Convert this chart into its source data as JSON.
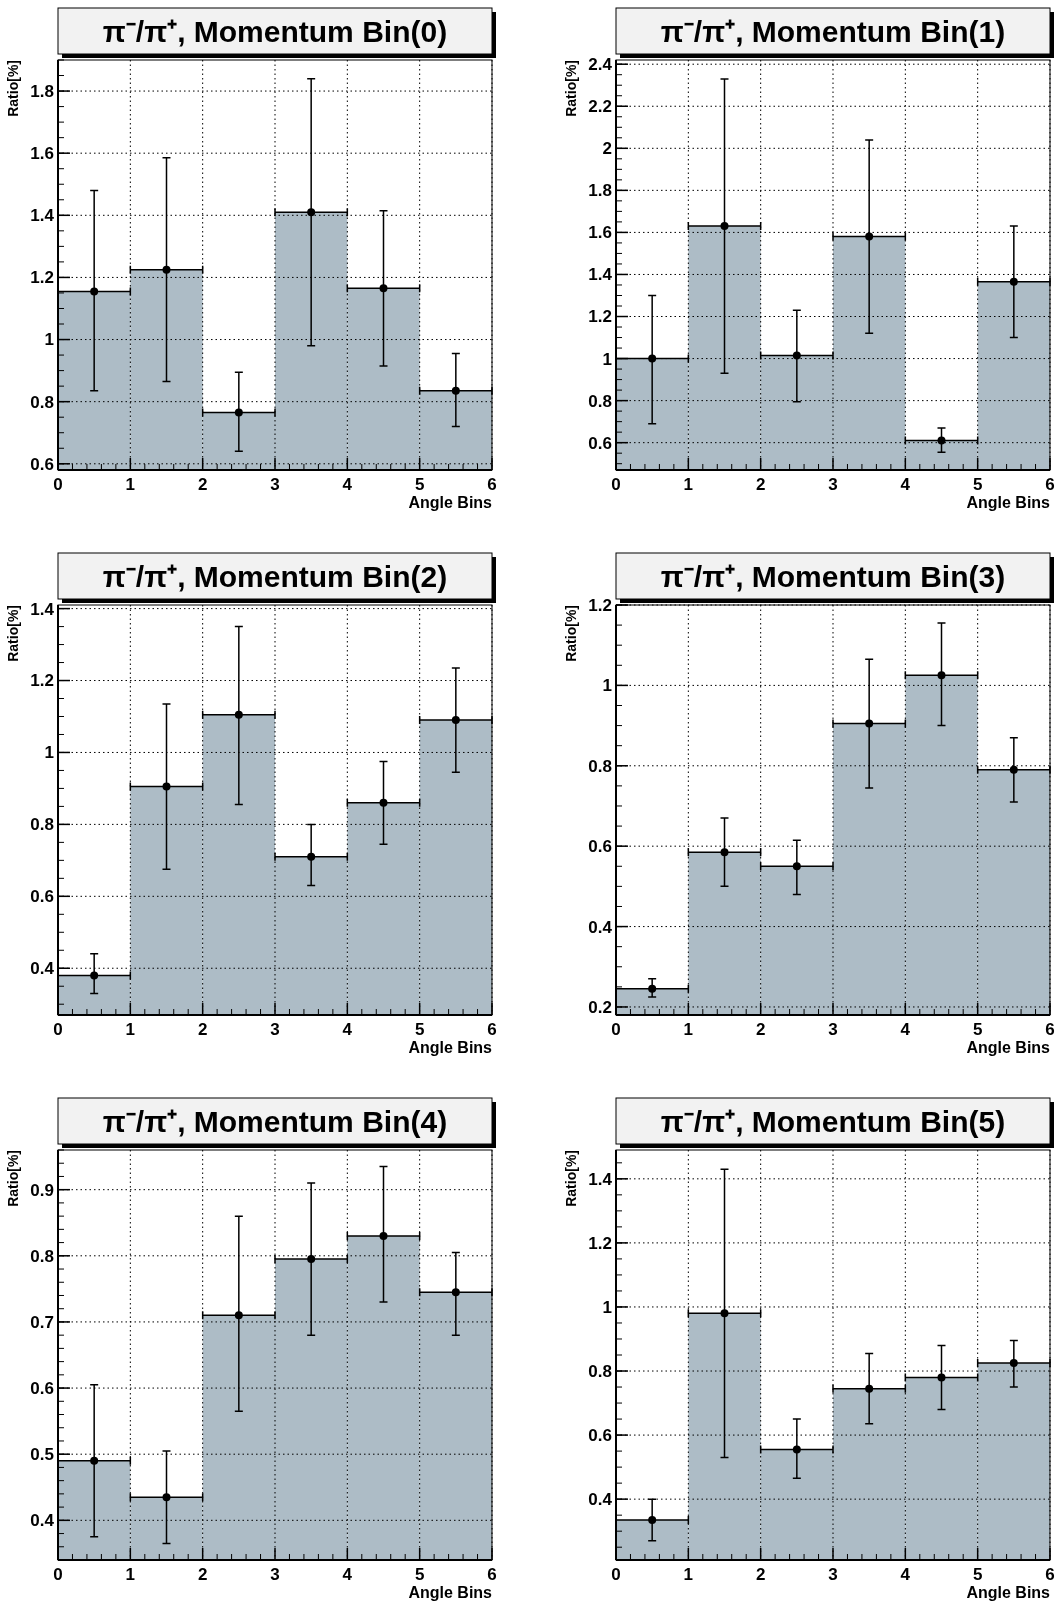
{
  "chart_data": [
    {
      "type": "histogram",
      "title": "π⁻/π⁺, Momentum Bin(0)",
      "xlabel": "Angle Bins",
      "ylabel": "Ratio[%]",
      "bins": [
        0,
        1,
        2,
        3,
        4,
        5,
        6
      ],
      "xlim": [
        0,
        6
      ],
      "xticks": [
        0,
        1,
        2,
        3,
        4,
        5,
        6
      ],
      "ylim": [
        0.58,
        1.9
      ],
      "yticks": [
        0.6,
        0.8,
        1,
        1.2,
        1.4,
        1.6,
        1.8
      ],
      "grid": true,
      "series": [
        {
          "type": "histogram",
          "color": "#adbcc6",
          "values": [
            1.155,
            1.225,
            0.765,
            1.41,
            1.165,
            0.835
          ]
        },
        {
          "type": "scatter",
          "color": "#000000",
          "marker": "circle",
          "x": [
            0.5,
            1.5,
            2.5,
            3.5,
            4.5,
            5.5
          ],
          "values": [
            1.155,
            1.225,
            0.765,
            1.41,
            1.165,
            0.835
          ],
          "xerrors": [
            0.5,
            0.5,
            0.5,
            0.5,
            0.5,
            0.5
          ],
          "errors": [
            [
              0.835,
              1.48
            ],
            [
              0.865,
              1.585
            ],
            [
              0.64,
              0.895
            ],
            [
              0.98,
              1.84
            ],
            [
              0.915,
              1.415
            ],
            [
              0.72,
              0.955
            ]
          ]
        }
      ]
    },
    {
      "type": "histogram",
      "title": "π⁻/π⁺, Momentum Bin(1)",
      "xlabel": "Angle Bins",
      "ylabel": "Ratio[%]",
      "bins": [
        0,
        1,
        2,
        3,
        4,
        5,
        6
      ],
      "xlim": [
        0,
        6
      ],
      "xticks": [
        0,
        1,
        2,
        3,
        4,
        5,
        6
      ],
      "ylim": [
        0.47,
        2.42
      ],
      "yticks": [
        0.6,
        0.8,
        1,
        1.2,
        1.4,
        1.6,
        1.8,
        2,
        2.2,
        2.4
      ],
      "grid": true,
      "series": [
        {
          "type": "histogram",
          "color": "#adbcc6",
          "values": [
            1.0,
            1.63,
            1.015,
            1.58,
            0.61,
            1.365
          ]
        },
        {
          "type": "scatter",
          "color": "#000000",
          "marker": "circle",
          "x": [
            0.5,
            1.5,
            2.5,
            3.5,
            4.5,
            5.5
          ],
          "values": [
            1.0,
            1.63,
            1.015,
            1.58,
            0.61,
            1.365
          ],
          "xerrors": [
            0.5,
            0.5,
            0.5,
            0.5,
            0.5,
            0.5
          ],
          "errors": [
            [
              0.69,
              1.3
            ],
            [
              0.93,
              2.33
            ],
            [
              0.795,
              1.23
            ],
            [
              1.12,
              2.04
            ],
            [
              0.555,
              0.67
            ],
            [
              1.1,
              1.63
            ]
          ]
        }
      ]
    },
    {
      "type": "histogram",
      "title": "π⁻/π⁺, Momentum Bin(2)",
      "xlabel": "Angle Bins",
      "ylabel": "Ratio[%]",
      "bins": [
        0,
        1,
        2,
        3,
        4,
        5,
        6
      ],
      "xlim": [
        0,
        6
      ],
      "xticks": [
        0,
        1,
        2,
        3,
        4,
        5,
        6
      ],
      "ylim": [
        0.27,
        1.41
      ],
      "yticks": [
        0.4,
        0.6,
        0.8,
        1,
        1.2,
        1.4
      ],
      "grid": true,
      "series": [
        {
          "type": "histogram",
          "color": "#adbcc6",
          "values": [
            0.38,
            0.905,
            1.105,
            0.71,
            0.86,
            1.09
          ]
        },
        {
          "type": "scatter",
          "color": "#000000",
          "marker": "circle",
          "x": [
            0.5,
            1.5,
            2.5,
            3.5,
            4.5,
            5.5
          ],
          "values": [
            0.38,
            0.905,
            1.105,
            0.71,
            0.86,
            1.09
          ],
          "xerrors": [
            0.5,
            0.5,
            0.5,
            0.5,
            0.5,
            0.5
          ],
          "errors": [
            [
              0.33,
              0.44
            ],
            [
              0.675,
              1.135
            ],
            [
              0.855,
              1.35
            ],
            [
              0.63,
              0.8
            ],
            [
              0.745,
              0.975
            ],
            [
              0.945,
              1.235
            ]
          ]
        }
      ]
    },
    {
      "type": "histogram",
      "title": "π⁻/π⁺, Momentum Bin(3)",
      "xlabel": "Angle Bins",
      "ylabel": "Ratio[%]",
      "bins": [
        0,
        1,
        2,
        3,
        4,
        5,
        6
      ],
      "xlim": [
        0,
        6
      ],
      "xticks": [
        0,
        1,
        2,
        3,
        4,
        5,
        6
      ],
      "ylim": [
        0.18,
        1.2
      ],
      "yticks": [
        0.2,
        0.4,
        0.6,
        0.8,
        1,
        1.2
      ],
      "grid": true,
      "series": [
        {
          "type": "histogram",
          "color": "#adbcc6",
          "values": [
            0.245,
            0.585,
            0.55,
            0.905,
            1.025,
            0.79
          ]
        },
        {
          "type": "scatter",
          "color": "#000000",
          "marker": "circle",
          "x": [
            0.5,
            1.5,
            2.5,
            3.5,
            4.5,
            5.5
          ],
          "values": [
            0.245,
            0.585,
            0.55,
            0.905,
            1.025,
            0.79
          ],
          "xerrors": [
            0.5,
            0.5,
            0.5,
            0.5,
            0.5,
            0.5
          ],
          "errors": [
            [
              0.225,
              0.27
            ],
            [
              0.5,
              0.67
            ],
            [
              0.48,
              0.615
            ],
            [
              0.745,
              1.065
            ],
            [
              0.9,
              1.155
            ],
            [
              0.71,
              0.87
            ]
          ]
        }
      ]
    },
    {
      "type": "histogram",
      "title": "π⁻/π⁺, Momentum Bin(4)",
      "xlabel": "Angle Bins",
      "ylabel": "Ratio[%]",
      "bins": [
        0,
        1,
        2,
        3,
        4,
        5,
        6
      ],
      "xlim": [
        0,
        6
      ],
      "xticks": [
        0,
        1,
        2,
        3,
        4,
        5,
        6
      ],
      "ylim": [
        0.34,
        0.96
      ],
      "yticks": [
        0.4,
        0.5,
        0.6,
        0.7,
        0.8,
        0.9
      ],
      "grid": true,
      "series": [
        {
          "type": "histogram",
          "color": "#adbcc6",
          "values": [
            0.49,
            0.435,
            0.71,
            0.795,
            0.83,
            0.745
          ]
        },
        {
          "type": "scatter",
          "color": "#000000",
          "marker": "circle",
          "x": [
            0.5,
            1.5,
            2.5,
            3.5,
            4.5,
            5.5
          ],
          "values": [
            0.49,
            0.435,
            0.71,
            0.795,
            0.83,
            0.745
          ],
          "xerrors": [
            0.5,
            0.5,
            0.5,
            0.5,
            0.5,
            0.5
          ],
          "errors": [
            [
              0.375,
              0.605
            ],
            [
              0.365,
              0.505
            ],
            [
              0.565,
              0.86
            ],
            [
              0.68,
              0.91
            ],
            [
              0.73,
              0.935
            ],
            [
              0.68,
              0.805
            ]
          ]
        }
      ]
    },
    {
      "type": "histogram",
      "title": "π⁻/π⁺, Momentum Bin(5)",
      "xlabel": "Angle Bins",
      "ylabel": "Ratio[%]",
      "bins": [
        0,
        1,
        2,
        3,
        4,
        5,
        6
      ],
      "xlim": [
        0,
        6
      ],
      "xticks": [
        0,
        1,
        2,
        3,
        4,
        5,
        6
      ],
      "ylim": [
        0.21,
        1.49
      ],
      "yticks": [
        0.4,
        0.6,
        0.8,
        1,
        1.2,
        1.4
      ],
      "grid": true,
      "series": [
        {
          "type": "histogram",
          "color": "#adbcc6",
          "values": [
            0.335,
            0.98,
            0.555,
            0.745,
            0.78,
            0.825
          ]
        },
        {
          "type": "scatter",
          "color": "#000000",
          "marker": "circle",
          "x": [
            0.5,
            1.5,
            2.5,
            3.5,
            4.5,
            5.5
          ],
          "values": [
            0.335,
            0.98,
            0.555,
            0.745,
            0.78,
            0.825
          ],
          "xerrors": [
            0.5,
            0.5,
            0.5,
            0.5,
            0.5,
            0.5
          ],
          "errors": [
            [
              0.27,
              0.4
            ],
            [
              0.53,
              1.43
            ],
            [
              0.465,
              0.65
            ],
            [
              0.635,
              0.855
            ],
            [
              0.68,
              0.88
            ],
            [
              0.75,
              0.895
            ]
          ]
        }
      ]
    }
  ]
}
